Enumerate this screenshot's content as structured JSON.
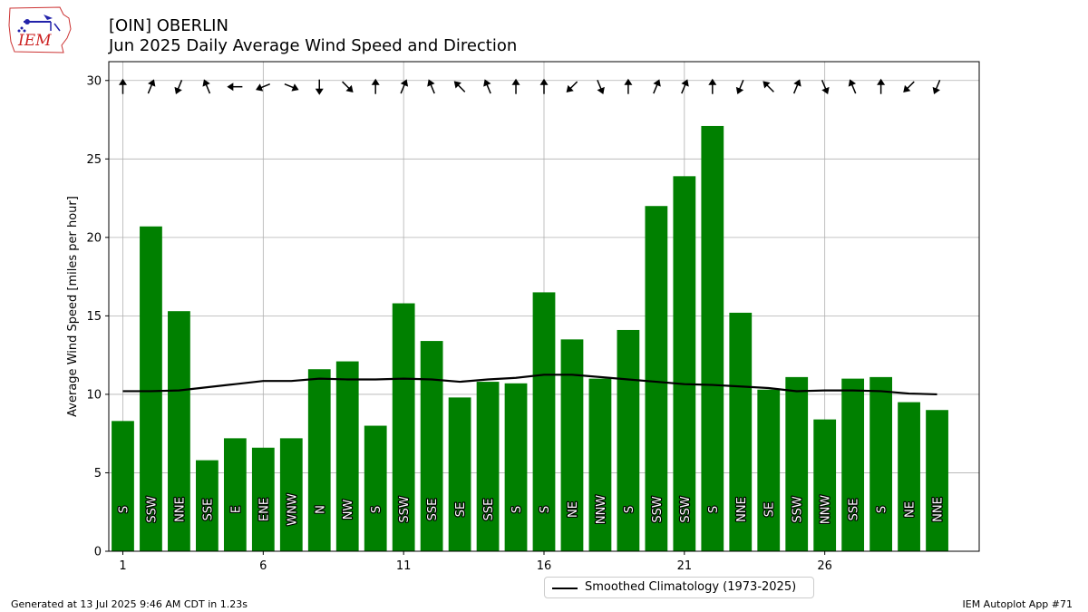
{
  "header": {
    "title_line1": "[OIN] OBERLIN",
    "title_line2": "Jun 2025 Daily Average Wind Speed and Direction",
    "logo_text": "IEM"
  },
  "footer": {
    "generated": "Generated at 13 Jul 2025 9:46 AM CDT in 1.23s",
    "app": "IEM Autoplot App #71"
  },
  "legend": {
    "label": "Smoothed Climatology (1973-2025)"
  },
  "colors": {
    "bar": "#008000",
    "climatology": "#000000",
    "grid": "#b0b0b0",
    "direction_text": "#ffffff",
    "direction_outline": "#000000"
  },
  "chart_data": {
    "type": "bar",
    "title": "[OIN] OBERLIN",
    "subtitle": "Jun 2025 Daily Average Wind Speed and Direction",
    "xlabel": "",
    "ylabel": "Average Wind Speed [miles per hour]",
    "xlim": [
      0.5,
      31.5
    ],
    "ylim": [
      0,
      31.2
    ],
    "xticks": [
      1,
      6,
      11,
      16,
      21,
      26
    ],
    "yticks": [
      0,
      5,
      10,
      15,
      20,
      25,
      30
    ],
    "grid": true,
    "legend_position": "bottom-center",
    "days": [
      1,
      2,
      3,
      4,
      5,
      6,
      7,
      8,
      9,
      10,
      11,
      12,
      13,
      14,
      15,
      16,
      17,
      18,
      19,
      20,
      21,
      22,
      23,
      24,
      25,
      26,
      27,
      28,
      29,
      30
    ],
    "speeds": [
      8.3,
      20.7,
      15.3,
      5.8,
      7.2,
      6.6,
      7.2,
      11.6,
      12.1,
      8.0,
      15.8,
      13.4,
      9.8,
      10.8,
      10.7,
      16.5,
      13.5,
      11.0,
      14.1,
      22.0,
      23.9,
      27.1,
      15.2,
      10.3,
      11.1,
      8.4,
      11.0,
      11.1,
      9.5,
      9.0
    ],
    "directions": [
      "S",
      "SSW",
      "NNE",
      "SSE",
      "E",
      "ENE",
      "WNW",
      "N",
      "NW",
      "S",
      "SSW",
      "SSE",
      "SE",
      "SSE",
      "S",
      "S",
      "NE",
      "NNW",
      "S",
      "SSW",
      "SSW",
      "S",
      "NNE",
      "SE",
      "SSW",
      "NNW",
      "SSE",
      "S",
      "NE",
      "NNE"
    ],
    "series": [
      {
        "name": "Smoothed Climatology (1973-2025)",
        "values": [
          10.2,
          10.2,
          10.25,
          10.45,
          10.65,
          10.85,
          10.85,
          11.0,
          10.95,
          10.95,
          11.0,
          10.95,
          10.8,
          10.95,
          11.05,
          11.25,
          11.25,
          11.1,
          10.95,
          10.8,
          10.65,
          10.6,
          10.5,
          10.4,
          10.2,
          10.25,
          10.25,
          10.2,
          10.05,
          10.0
        ]
      }
    ]
  }
}
